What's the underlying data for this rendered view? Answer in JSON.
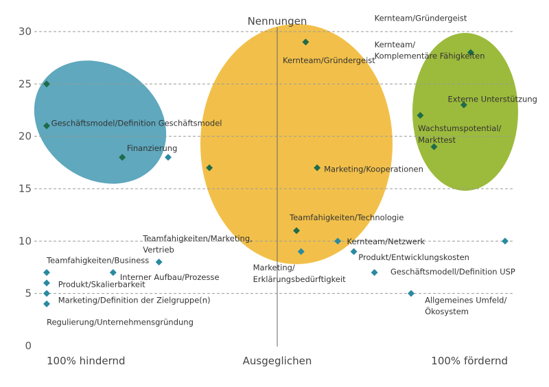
{
  "chart_data": {
    "type": "scatter",
    "title": "Nennungen",
    "ylim": [
      0,
      30
    ],
    "yticks": [
      0,
      5,
      10,
      15,
      20,
      25,
      30
    ],
    "x_categories": [
      "100% hindernd",
      "Ausgeglichen",
      "100% fördernd"
    ],
    "xlim": [
      -100,
      100
    ],
    "grid": "horizontal dashed",
    "colors": {
      "marker_teal": "#2a8aa0",
      "marker_green": "#1f6b4a",
      "blue_cluster": "#5fa8bd",
      "yellow_cluster": "#f2c04a",
      "green_cluster": "#9cbb3c",
      "divider": "#666666"
    },
    "clusters": [
      {
        "name": "hindernd",
        "color": "#5fa8bd"
      },
      {
        "name": "ausgeglichen",
        "color": "#f2c04a"
      },
      {
        "name": "fördernd",
        "color": "#9cbb3c"
      }
    ],
    "points": [
      {
        "x": -100,
        "y": 25,
        "color": "#1f6b4a"
      },
      {
        "x": -100,
        "y": 21,
        "color": "#1f6b4a"
      },
      {
        "x": -67,
        "y": 18,
        "color": "#1f6b4a"
      },
      {
        "x": -47,
        "y": 18,
        "color": "#2a8aa0"
      },
      {
        "x": -29,
        "y": 17,
        "color": "#1f6b4a"
      },
      {
        "x": 13,
        "y": 29,
        "color": "#1f6b4a"
      },
      {
        "x": 18,
        "y": 17,
        "color": "#1f6b4a"
      },
      {
        "x": 9,
        "y": 11,
        "color": "#1f6b4a"
      },
      {
        "x": 11,
        "y": 9,
        "color": "#2a8aa0"
      },
      {
        "x": 27,
        "y": 10,
        "color": "#2a8aa0"
      },
      {
        "x": 34,
        "y": 9,
        "color": "#2a8aa0"
      },
      {
        "x": 43,
        "y": 7,
        "color": "#2a8aa0"
      },
      {
        "x": 59,
        "y": 5,
        "color": "#2a8aa0"
      },
      {
        "x": 63,
        "y": 22,
        "color": "#1f6b4a"
      },
      {
        "x": 69,
        "y": 19,
        "color": "#1f6b4a"
      },
      {
        "x": 82,
        "y": 23,
        "color": "#1f6b4a"
      },
      {
        "x": 85,
        "y": 28,
        "color": "#1f6b4a"
      },
      {
        "x": 100,
        "y": 10,
        "color": "#2a8aa0"
      },
      {
        "x": -100,
        "y": 7,
        "color": "#2a8aa0"
      },
      {
        "x": -100,
        "y": 6,
        "color": "#2a8aa0"
      },
      {
        "x": -100,
        "y": 5,
        "color": "#2a8aa0"
      },
      {
        "x": -100,
        "y": 4,
        "color": "#2a8aa0"
      },
      {
        "x": -71,
        "y": 7,
        "color": "#2a8aa0"
      },
      {
        "x": -51,
        "y": 8,
        "color": "#2a8aa0"
      }
    ],
    "annotations": [
      {
        "text": "Geschäftsmodel/Definition Geschäftsmodel",
        "x": -98,
        "y": 21
      },
      {
        "text": "Finanzierung",
        "x": -65,
        "y": 18.6
      },
      {
        "text": "Kernteam/Gründergeist",
        "x": 3,
        "y": 27
      },
      {
        "text": "Kernteam/Gründergeist",
        "x": 43,
        "y": 31
      },
      {
        "text": "Kernteam/",
        "x": 43,
        "y": 28.5
      },
      {
        "text": "Komplementäre Fähigkeiten",
        "x": 43,
        "y": 27.4
      },
      {
        "text": "Externe Unterstützung",
        "x": 75,
        "y": 23.3
      },
      {
        "text": "Wachstumspotential/",
        "x": 62,
        "y": 20.5
      },
      {
        "text": "Markttest",
        "x": 62,
        "y": 19.4
      },
      {
        "text": "Marketing/Kooperationen",
        "x": 21,
        "y": 16.6
      },
      {
        "text": "Teamfahigkeiten/Technologie",
        "x": 6,
        "y": 12
      },
      {
        "text": "Teamfahigkeiten/Marketing,",
        "x": -58,
        "y": 10
      },
      {
        "text": "Vertrieb",
        "x": -58,
        "y": 8.9
      },
      {
        "text": "Kernteam/Netzwerk",
        "x": 31,
        "y": 9.7
      },
      {
        "text": "Produkt/Entwicklungskosten",
        "x": 36,
        "y": 8.2
      },
      {
        "text": "Marketing/",
        "x": -10,
        "y": 7.2
      },
      {
        "text": "Erklärungsbedürftigkeit",
        "x": -10,
        "y": 6.1
      },
      {
        "text": "Geschäftsmodell/Definition USP",
        "x": 50,
        "y": 6.8
      },
      {
        "text": "Teamfahigkeiten/Business",
        "x": -100,
        "y": 7.9
      },
      {
        "text": "Interner Aufbau/Prozesse",
        "x": -68,
        "y": 6.3
      },
      {
        "text": "Produkt/Skalierbarkeit",
        "x": -95,
        "y": 5.6
      },
      {
        "text": "Marketing/Definition der Zielgruppe(n)",
        "x": -95,
        "y": 4.1
      },
      {
        "text": "Allgemeines Umfeld/",
        "x": 65,
        "y": 4.1
      },
      {
        "text": "Ökosystem",
        "x": 65,
        "y": 3.0
      },
      {
        "text": "Regulierung/Unternehmensgründung",
        "x": -100,
        "y": 2.0
      }
    ]
  }
}
